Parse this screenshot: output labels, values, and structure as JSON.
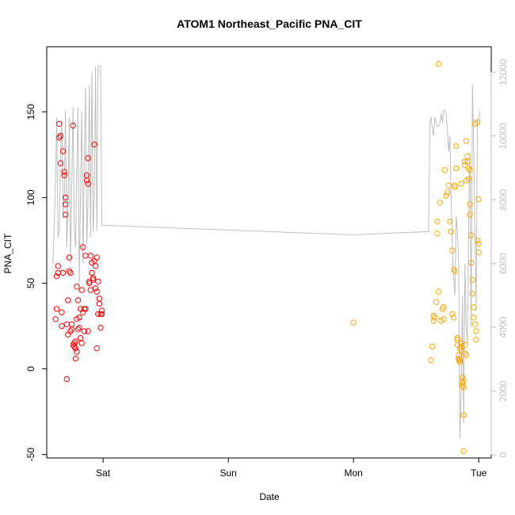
{
  "chart_data": {
    "type": "scatter",
    "title": "ATOM1 Northeast_Pacific PNA_CIT",
    "xlabel": "Date",
    "ylabel": "PNA_CIT",
    "xlim": [
      -0.45,
      3.1
    ],
    "ylim": [
      -52,
      188
    ],
    "y2lim": [
      -100,
      12800
    ],
    "x_ticks": [
      {
        "value": 0,
        "label": "Sat"
      },
      {
        "value": 1,
        "label": "Sun"
      },
      {
        "value": 2,
        "label": "Mon"
      },
      {
        "value": 3,
        "label": "Tue"
      }
    ],
    "y_ticks": [
      -50,
      0,
      50,
      100,
      150
    ],
    "y2_ticks": [
      0,
      2000,
      4000,
      6000,
      8000,
      10000,
      12000
    ],
    "colors": {
      "series1": "#ff0000",
      "series2": "#ffa500",
      "line": "#bebebe",
      "axis": "#000000"
    },
    "series": [
      {
        "marker": "circle",
        "color": "#ff0000",
        "x": [
          -0.38,
          -0.37,
          -0.37,
          -0.36,
          -0.36,
          -0.35,
          -0.35,
          -0.34,
          -0.34,
          -0.33,
          -0.33,
          -0.32,
          -0.32,
          -0.31,
          -0.31,
          -0.3,
          -0.3,
          -0.29,
          -0.29,
          -0.28,
          -0.28,
          -0.27,
          -0.27,
          -0.26,
          -0.26,
          -0.25,
          -0.25,
          -0.24,
          -0.24,
          -0.23,
          -0.23,
          -0.22,
          -0.22,
          -0.21,
          -0.21,
          -0.2,
          -0.2,
          -0.19,
          -0.19,
          -0.18,
          -0.18,
          -0.17,
          -0.17,
          -0.16,
          -0.16,
          -0.15,
          -0.15,
          -0.14,
          -0.14,
          -0.13,
          -0.13,
          -0.12,
          -0.12,
          -0.11,
          -0.11,
          -0.1,
          -0.1,
          -0.09,
          -0.09,
          -0.08,
          -0.08,
          -0.07,
          -0.07,
          -0.06,
          -0.06,
          -0.05,
          -0.05,
          -0.04,
          -0.04,
          -0.03,
          -0.03,
          -0.02,
          -0.02,
          -0.01,
          -0.01,
          -0.3,
          -0.21,
          -0.12,
          -0.05,
          -0.22
        ],
        "y": [
          29,
          35,
          54,
          60,
          56,
          143,
          135,
          136,
          120,
          25,
          33,
          56,
          127,
          115,
          113,
          100,
          90,
          -6,
          26,
          20,
          40,
          65,
          57,
          56,
          22,
          26,
          23,
          142,
          14,
          13,
          15,
          12,
          6,
          10,
          29,
          23,
          40,
          30,
          24,
          18,
          35,
          15,
          46,
          71,
          33,
          22,
          35,
          35,
          66,
          113,
          110,
          108,
          123,
          51,
          50,
          46,
          66,
          56,
          62,
          52,
          53,
          131,
          63,
          60,
          47,
          65,
          45,
          32,
          51,
          38,
          41,
          32,
          24,
          32,
          34,
          96,
          48,
          22,
          12,
          16
        ]
      },
      {
        "marker": "circle",
        "color": "#ffa500",
        "x": [
          2.0,
          2.62,
          2.63,
          2.64,
          2.64,
          2.65,
          2.66,
          2.67,
          2.67,
          2.68,
          2.68,
          2.69,
          2.7,
          2.71,
          2.72,
          2.73,
          2.74,
          2.75,
          2.76,
          2.77,
          2.78,
          2.79,
          2.8,
          2.8,
          2.81,
          2.81,
          2.82,
          2.82,
          2.83,
          2.83,
          2.83,
          2.84,
          2.84,
          2.84,
          2.85,
          2.85,
          2.85,
          2.86,
          2.86,
          2.86,
          2.87,
          2.87,
          2.87,
          2.88,
          2.88,
          2.88,
          2.88,
          2.89,
          2.89,
          2.89,
          2.9,
          2.9,
          2.9,
          2.91,
          2.91,
          2.92,
          2.92,
          2.93,
          2.93,
          2.94,
          2.94,
          2.95,
          2.95,
          2.96,
          2.96,
          2.97,
          2.97,
          2.98,
          2.98,
          2.99,
          2.99,
          3.0,
          3.0,
          3.0,
          2.79,
          2.72,
          2.81,
          2.86,
          2.89,
          2.93
        ],
        "y": [
          27,
          5,
          13,
          28,
          31,
          30,
          39,
          86,
          79,
          45,
          178,
          97,
          28,
          35,
          36,
          116,
          101,
          103,
          107,
          86,
          80,
          69,
          58,
          30,
          106,
          107,
          117,
          130,
          18,
          17,
          14,
          8,
          6,
          5,
          4,
          5,
          12,
          15,
          13,
          11,
          -5,
          -8,
          -10,
          -7,
          -48,
          -27,
          -11,
          14,
          9,
          119,
          8,
          133,
          110,
          121,
          124,
          111,
          117,
          96,
          90,
          78,
          62,
          52,
          44,
          36,
          30,
          143,
          26,
          22,
          17,
          144,
          75,
          99,
          73,
          68,
          32,
          29,
          57,
          108,
          121,
          116
        ]
      }
    ],
    "line_series": {
      "axis": "right",
      "color": "#bebebe",
      "x": [
        -0.4,
        -0.38,
        -0.37,
        -0.36,
        -0.35,
        -0.34,
        -0.33,
        -0.32,
        -0.31,
        -0.3,
        -0.29,
        -0.28,
        -0.27,
        -0.26,
        -0.25,
        -0.24,
        -0.23,
        -0.22,
        -0.21,
        -0.2,
        -0.19,
        -0.18,
        -0.17,
        -0.16,
        -0.15,
        -0.14,
        -0.13,
        -0.12,
        -0.11,
        -0.1,
        -0.09,
        -0.08,
        -0.07,
        -0.06,
        -0.05,
        -0.04,
        -0.03,
        -0.02,
        -0.01,
        0.0,
        2.0,
        2.6,
        2.61,
        2.62,
        2.63,
        2.64,
        2.65,
        2.66,
        2.67,
        2.68,
        2.69,
        2.7,
        2.71,
        2.72,
        2.73,
        2.74,
        2.75,
        2.76,
        2.77,
        2.78,
        2.79,
        2.8,
        2.81,
        2.82,
        2.83,
        2.84,
        2.85,
        2.86,
        2.87,
        2.88,
        2.89,
        2.9,
        2.91,
        2.92,
        2.93,
        2.94,
        2.95,
        2.96,
        2.97,
        2.98,
        2.99,
        3.0,
        3.01,
        2.0
      ],
      "y": [
        6000,
        8600,
        10600,
        6800,
        7000,
        9400,
        10500,
        7400,
        8200,
        10800,
        6500,
        8000,
        10600,
        6000,
        8500,
        10900,
        7200,
        6500,
        8800,
        10900,
        5300,
        8300,
        10800,
        6000,
        9400,
        11500,
        6600,
        8000,
        11600,
        6800,
        12000,
        7000,
        8200,
        12200,
        7000,
        12200,
        12200,
        12200,
        7200,
        7200,
        6900,
        7000,
        10400,
        10600,
        10200,
        10000,
        10600,
        10400,
        10300,
        10300,
        10400,
        10700,
        10400,
        10800,
        10800,
        10700,
        10200,
        9500,
        10000,
        8000,
        6400,
        5500,
        5000,
        7500,
        7000,
        6000,
        500,
        2000,
        5000,
        1000,
        6000,
        4000,
        3500,
        7500,
        9500,
        4000,
        11600,
        9600,
        6700,
        4500,
        10500,
        10500,
        10800,
        8000
      ],
      "note": ""
    }
  }
}
